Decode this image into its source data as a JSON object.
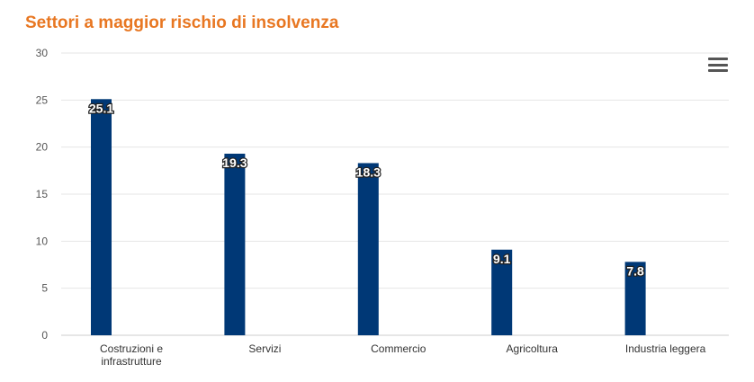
{
  "header": {
    "title": "Settori a maggior rischio di insolvenza"
  },
  "toolbar": {
    "menu_icon": "hamburger-menu-icon"
  },
  "colors": {
    "title": "#e87722",
    "bar": "#003876",
    "grid": "#e6e6e6"
  },
  "chart_data": {
    "type": "bar",
    "title": "Settori a maggior rischio di insolvenza",
    "categories": [
      [
        "Costruzioni e",
        "infrastrutture"
      ],
      [
        "Servizi"
      ],
      [
        "Commercio"
      ],
      [
        "Agricoltura"
      ],
      [
        "Industria leggera"
      ]
    ],
    "values": [
      25.1,
      19.3,
      18.3,
      9.1,
      7.8
    ],
    "data_labels": [
      "25.1",
      "19.3",
      "18.3",
      "9.1",
      "7.8"
    ],
    "ylim": [
      0,
      30
    ],
    "yticks": [
      "0",
      "5",
      "10",
      "15",
      "20",
      "25",
      "30"
    ],
    "grid": true,
    "legend": "none"
  }
}
